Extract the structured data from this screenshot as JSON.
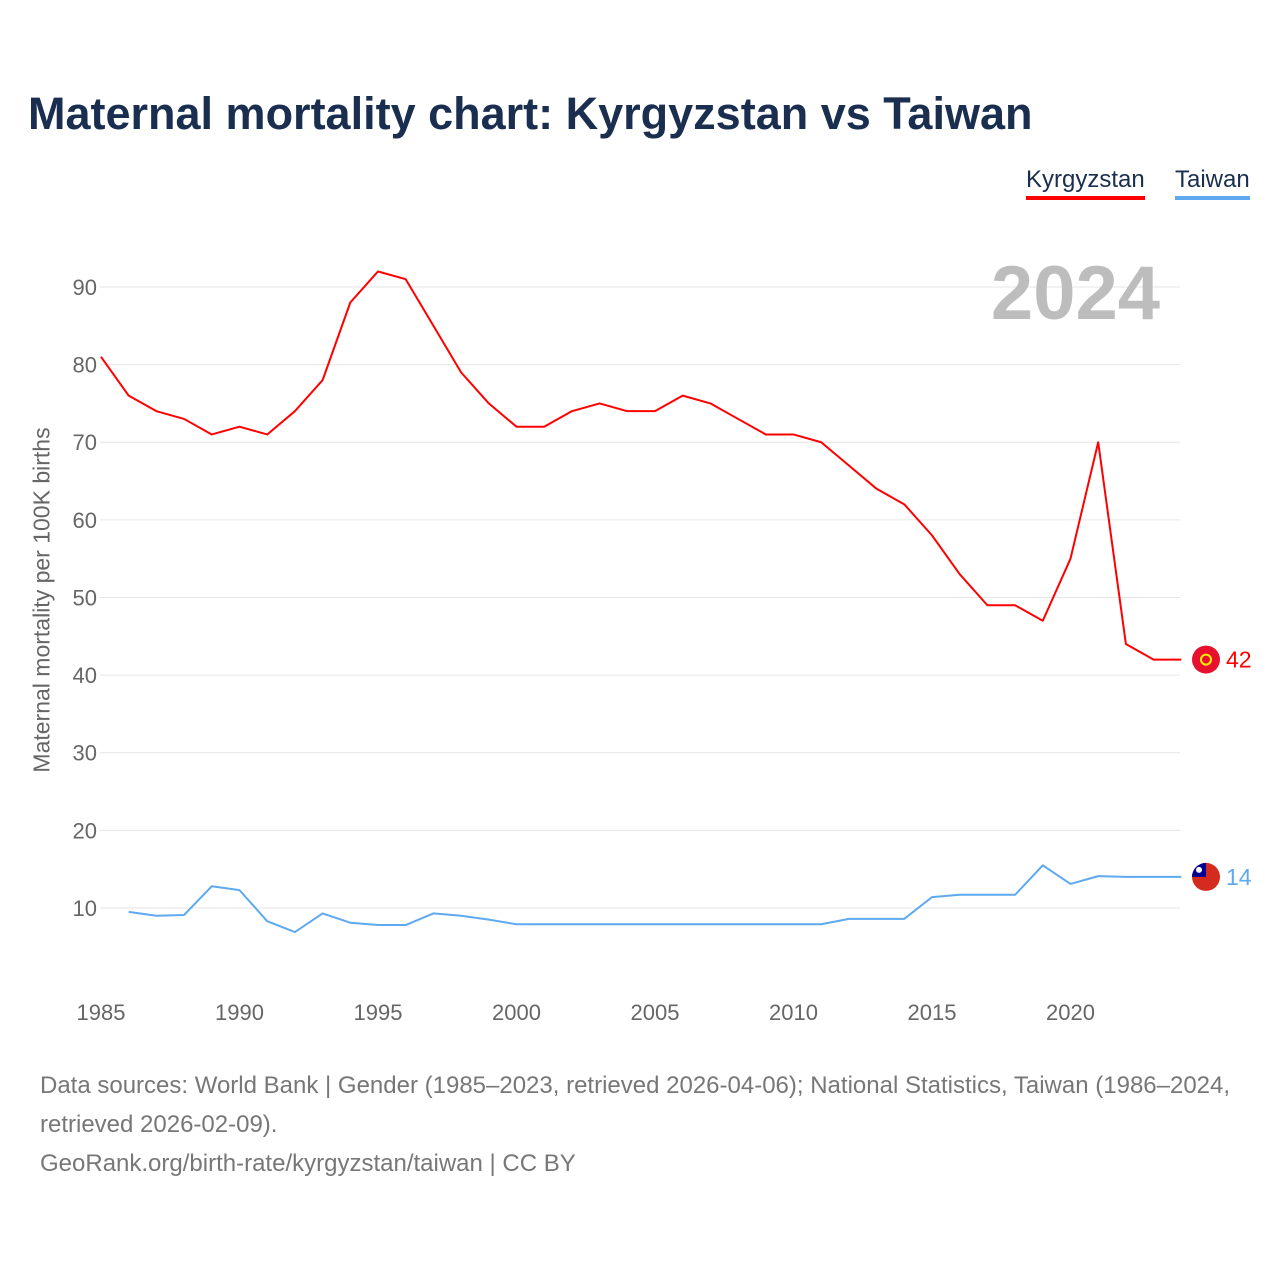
{
  "title": "Maternal mortality chart: Kyrgyzstan vs Taiwan",
  "year_label": "2024",
  "source_line1": "Data sources: World Bank | Gender (1985–2023, retrieved 2026-04-06); National Statistics, Taiwan (1986–2024, retrieved 2026-02-09).",
  "source_line2": "GeoRank.org/birth-rate/kyrgyzstan/taiwan | CC BY",
  "chart_data": {
    "type": "line",
    "title": "Maternal mortality chart: Kyrgyzstan vs Taiwan",
    "xlabel": "",
    "ylabel": "Maternal mortality per 100K births",
    "xlim": [
      1985,
      2024
    ],
    "ylim": [
      0,
      95
    ],
    "xticks": [
      1985,
      1990,
      1995,
      2000,
      2005,
      2010,
      2015,
      2020
    ],
    "yticks": [
      10,
      20,
      30,
      40,
      50,
      60,
      70,
      80,
      90
    ],
    "legend_position": "top-right",
    "grid": true,
    "series": [
      {
        "name": "Kyrgyzstan",
        "color": "#ff0000",
        "end_label": "42",
        "x": [
          1985,
          1986,
          1987,
          1988,
          1989,
          1990,
          1991,
          1992,
          1993,
          1994,
          1995,
          1996,
          1997,
          1998,
          1999,
          2000,
          2001,
          2002,
          2003,
          2004,
          2005,
          2006,
          2007,
          2008,
          2009,
          2010,
          2011,
          2012,
          2013,
          2014,
          2015,
          2016,
          2017,
          2018,
          2019,
          2020,
          2021,
          2022,
          2023,
          2024
        ],
        "y": [
          81,
          76,
          74,
          73,
          71,
          72,
          71,
          74,
          78,
          88,
          92,
          91,
          85,
          79,
          75,
          72,
          72,
          74,
          75,
          74,
          74,
          76,
          75,
          73,
          71,
          71,
          70,
          67,
          64,
          62,
          58,
          53,
          49,
          49,
          47,
          55,
          70,
          44,
          42,
          42
        ]
      },
      {
        "name": "Taiwan",
        "color": "#5ea9ef",
        "end_label": "14",
        "x": [
          1986,
          1987,
          1988,
          1989,
          1990,
          1991,
          1992,
          1993,
          1994,
          1995,
          1996,
          1997,
          1998,
          1999,
          2000,
          2001,
          2002,
          2003,
          2004,
          2005,
          2006,
          2007,
          2008,
          2009,
          2010,
          2011,
          2012,
          2013,
          2014,
          2015,
          2016,
          2017,
          2018,
          2019,
          2020,
          2021,
          2022,
          2023,
          2024
        ],
        "y": [
          9.5,
          9,
          9.1,
          12.8,
          12.3,
          8.3,
          6.9,
          9.3,
          8.1,
          7.8,
          7.8,
          9.3,
          9,
          8.5,
          7.9,
          7.9,
          7.9,
          7.9,
          7.9,
          7.9,
          7.9,
          7.9,
          7.9,
          7.9,
          7.9,
          7.9,
          8.6,
          8.6,
          8.6,
          11.4,
          11.7,
          11.7,
          11.7,
          15.5,
          13.1,
          14.1,
          14,
          14,
          14
        ]
      }
    ]
  }
}
